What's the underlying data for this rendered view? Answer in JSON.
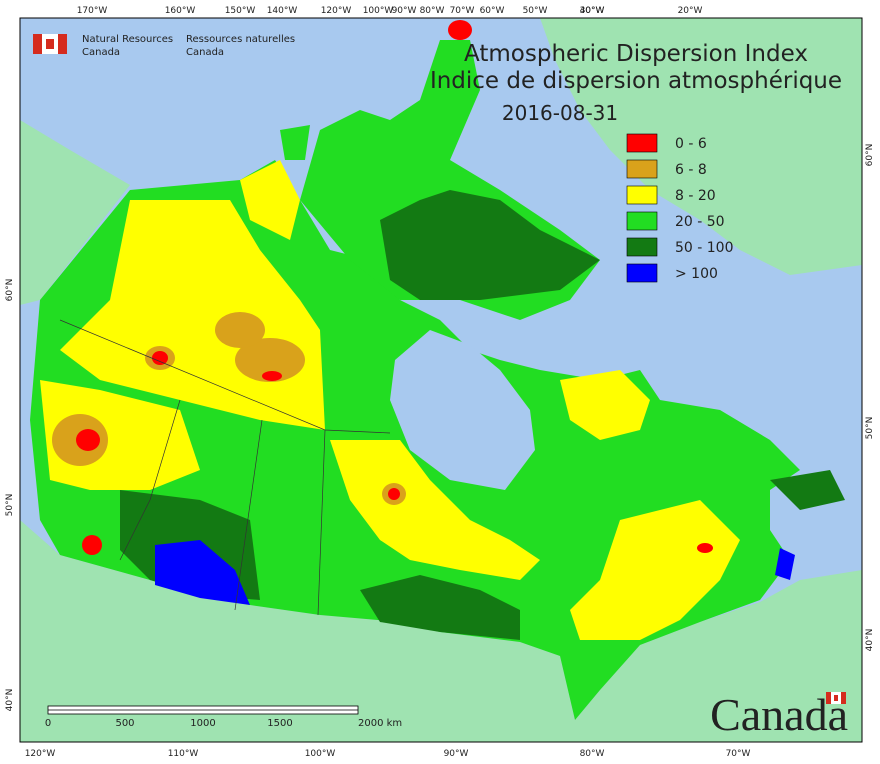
{
  "header": {
    "agency_en": [
      "Natural Resources",
      "Canada"
    ],
    "agency_fr": [
      "Ressources naturelles",
      "Canada"
    ]
  },
  "title": [
    "Atmospheric Dispersion Index",
    "Indice de dispersion atmosphérique"
  ],
  "date": "2016-08-31",
  "legend": [
    {
      "label": "0 - 6",
      "color": "#ff0000"
    },
    {
      "label": "6 - 8",
      "color": "#d9a21b"
    },
    {
      "label": "8 - 20",
      "color": "#ffff00"
    },
    {
      "label": "20 - 50",
      "color": "#22dd22"
    },
    {
      "label": "50 - 100",
      "color": "#137a13"
    },
    {
      "label": "> 100",
      "color": "#0000ff"
    }
  ],
  "graticule": {
    "top": [
      "170°W",
      "160°W",
      "150°W",
      "140°W",
      "120°W",
      "100°W",
      "90°W",
      "80°W",
      "70°W",
      "60°W",
      "50°W",
      "40°W",
      "30°W",
      "20°W"
    ],
    "bottom": [
      "120°W",
      "110°W",
      "100°W",
      "90°W",
      "80°W",
      "70°W"
    ],
    "left": [
      "60°N",
      "50°N",
      "40°N"
    ],
    "right": [
      "60°N",
      "50°N",
      "40°N"
    ]
  },
  "scale_bar": [
    "0",
    "500",
    "1000",
    "1500",
    "2000 km"
  ],
  "wordmark": "Canada"
}
